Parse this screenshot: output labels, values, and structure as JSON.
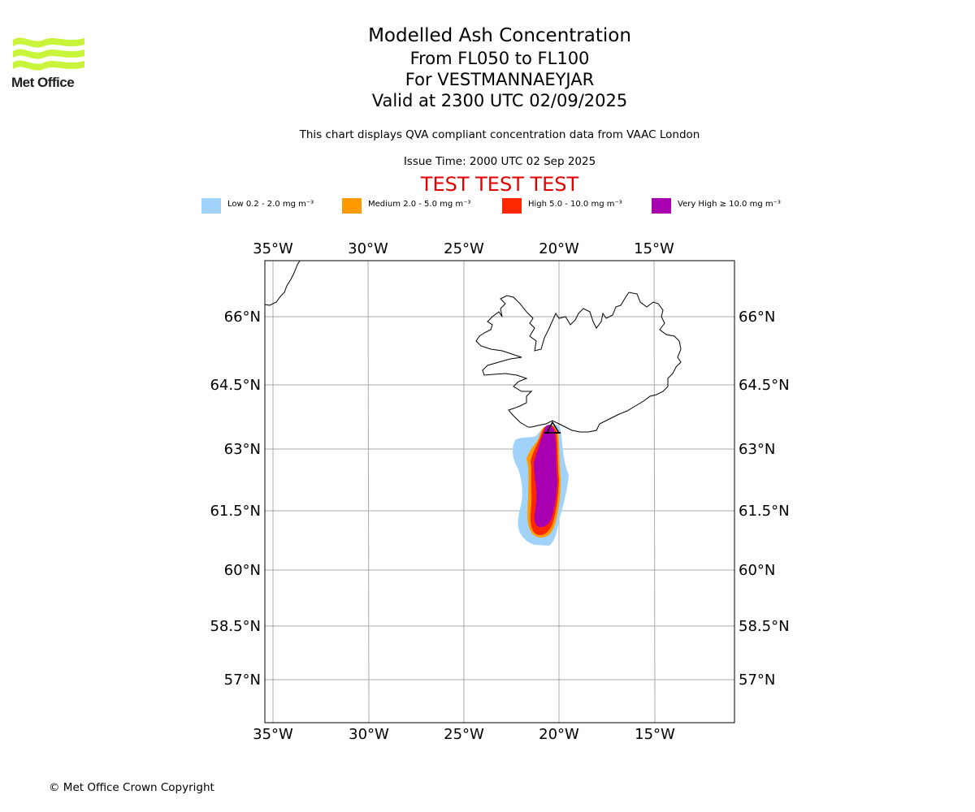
{
  "brand": {
    "name": "Met Office",
    "logo_icon": "met-office-waves-icon",
    "logo_color": "#c8f53a"
  },
  "header": {
    "title": "Modelled Ash Concentration",
    "levels": "From FL050 to FL100",
    "volcano": "For VESTMANNAEYJAR",
    "valid": "Valid at 2300 UTC 02/09/2025",
    "compliance": "This chart displays QVA compliant concentration data from VAAC London",
    "issue_time": "Issue Time: 2000 UTC 02 Sep 2025",
    "test_banner": "TEST TEST TEST"
  },
  "legend": [
    {
      "label": "Low 0.2 - 2.0 mg m⁻³",
      "color": "#a0d2fa"
    },
    {
      "label": "Medium 2.0 - 5.0 mg m⁻³",
      "color": "#ff9a00"
    },
    {
      "label": "High 5.0 - 10.0 mg m⁻³",
      "color": "#ff2800"
    },
    {
      "label": "Very High ≥ 10.0 mg m⁻³",
      "color": "#a800b0"
    }
  ],
  "map": {
    "lon_labels": [
      "35°W",
      "30°W",
      "25°W",
      "20°W",
      "15°W"
    ],
    "lat_labels": [
      "66°N",
      "64.5°N",
      "63°N",
      "61.5°N",
      "60°N",
      "58.5°N",
      "57°N"
    ],
    "volcano_marker_icon": "volcano-triangle-icon",
    "gridlines": true
  },
  "footer": {
    "copyright": "© Met Office Crown Copyright"
  }
}
